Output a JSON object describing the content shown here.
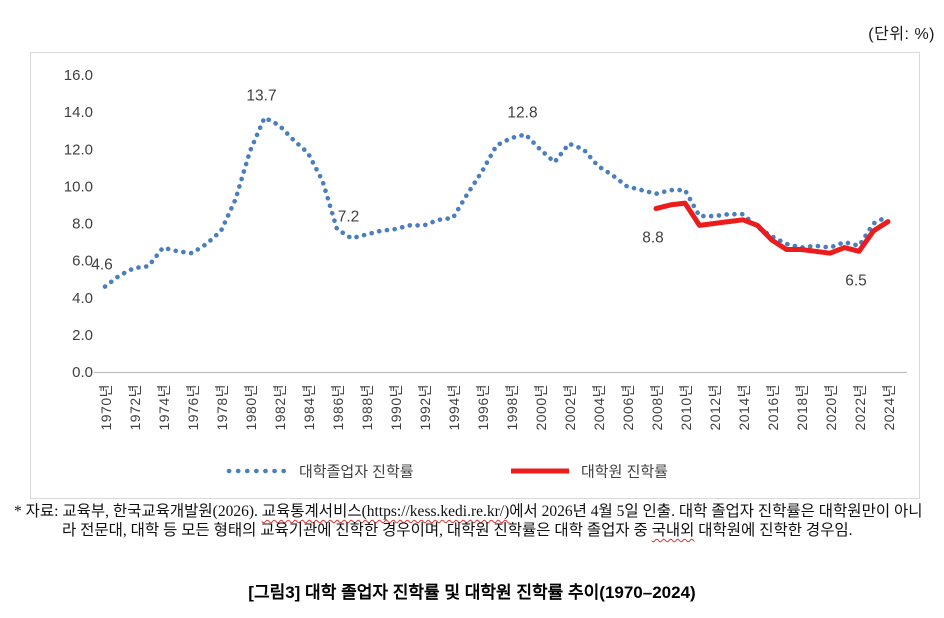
{
  "unit_label": "(단위:  %)",
  "chart_data": {
    "type": "line",
    "title": "",
    "unit": "%",
    "ylim": [
      0,
      16
    ],
    "grid": false,
    "legend_position": "bottom",
    "y_tick_labels": [
      "0.0",
      "2.0",
      "4.0",
      "6.0",
      "8.0",
      "10.0",
      "12.0",
      "14.0",
      "16.0"
    ],
    "x_tick_labels": [
      "1970년",
      "1972년",
      "1974년",
      "1976년",
      "1978년",
      "1980년",
      "1982년",
      "1984년",
      "1986년",
      "1988년",
      "1990년",
      "1992년",
      "1994년",
      "1996년",
      "1998년",
      "2000년",
      "2002년",
      "2004년",
      "2006년",
      "2008년",
      "2010년",
      "2012년",
      "2014년",
      "2016년",
      "2018년",
      "2020년",
      "2022년",
      "2024년"
    ],
    "series": [
      {
        "name": "대학졸업자 진학률",
        "color": "#4a7ebc",
        "line_style": "dotted",
        "start_year": 1970,
        "end_year": 2024,
        "values": [
          4.6,
          5.2,
          5.6,
          5.7,
          6.7,
          6.5,
          6.4,
          6.9,
          7.6,
          9.3,
          11.9,
          13.7,
          13.3,
          12.5,
          11.8,
          10.3,
          7.7,
          7.2,
          7.4,
          7.6,
          7.7,
          7.9,
          7.9,
          8.2,
          8.3,
          9.6,
          10.8,
          12.2,
          12.6,
          12.8,
          12.0,
          11.3,
          12.3,
          12.0,
          11.1,
          10.6,
          10.0,
          9.8,
          9.6,
          9.8,
          9.8,
          8.4,
          8.4,
          8.5,
          8.5,
          7.8,
          7.3,
          6.9,
          6.7,
          6.8,
          6.7,
          7.0,
          6.8,
          8.0,
          8.4
        ]
      },
      {
        "name": "대학원 진학률",
        "color": "#ed1c1c",
        "line_style": "solid",
        "start_year": 2008,
        "end_year": 2024,
        "values": [
          8.8,
          9.0,
          9.1,
          7.9,
          8.0,
          8.1,
          8.2,
          7.9,
          7.1,
          6.6,
          6.6,
          6.5,
          6.4,
          6.7,
          6.5,
          7.6,
          8.1
        ]
      }
    ],
    "point_labels": [
      {
        "series": 0,
        "year": 1970,
        "text": "4.6",
        "position": "above"
      },
      {
        "series": 0,
        "year": 1981,
        "text": "13.7",
        "position": "above"
      },
      {
        "series": 0,
        "year": 1987,
        "text": "7.2",
        "position": "above"
      },
      {
        "series": 0,
        "year": 1999,
        "text": "12.8",
        "position": "above"
      },
      {
        "series": 1,
        "year": 2008,
        "text": "8.8",
        "position": "below"
      },
      {
        "series": 1,
        "year": 2022,
        "text": "6.5",
        "position": "below"
      }
    ]
  },
  "footnote": {
    "segments": [
      {
        "text": "* 자료: 교육부, 한국교육개발원(2026). ",
        "wavy": false
      },
      {
        "text": "교육통계서비스(https://kess.kedi.re.kr/)",
        "wavy": true
      },
      {
        "text": "에서 2026년 4월 5일 인출. 대학 졸업자 진학률은 대학원만이 아니라 전문대, 대학 등 모든 형태의 교육기관에 진학한 경우이며, 대학원 진학률은 대학 졸업자 중 ",
        "wavy": false
      },
      {
        "text": "국내외",
        "wavy": true
      },
      {
        "text": " 대학원에 진학한 경우임.",
        "wavy": false
      }
    ]
  },
  "caption": "[그림3] 대학 졸업자 진학률 및 대학원 진학률 추이(1970–2024)"
}
